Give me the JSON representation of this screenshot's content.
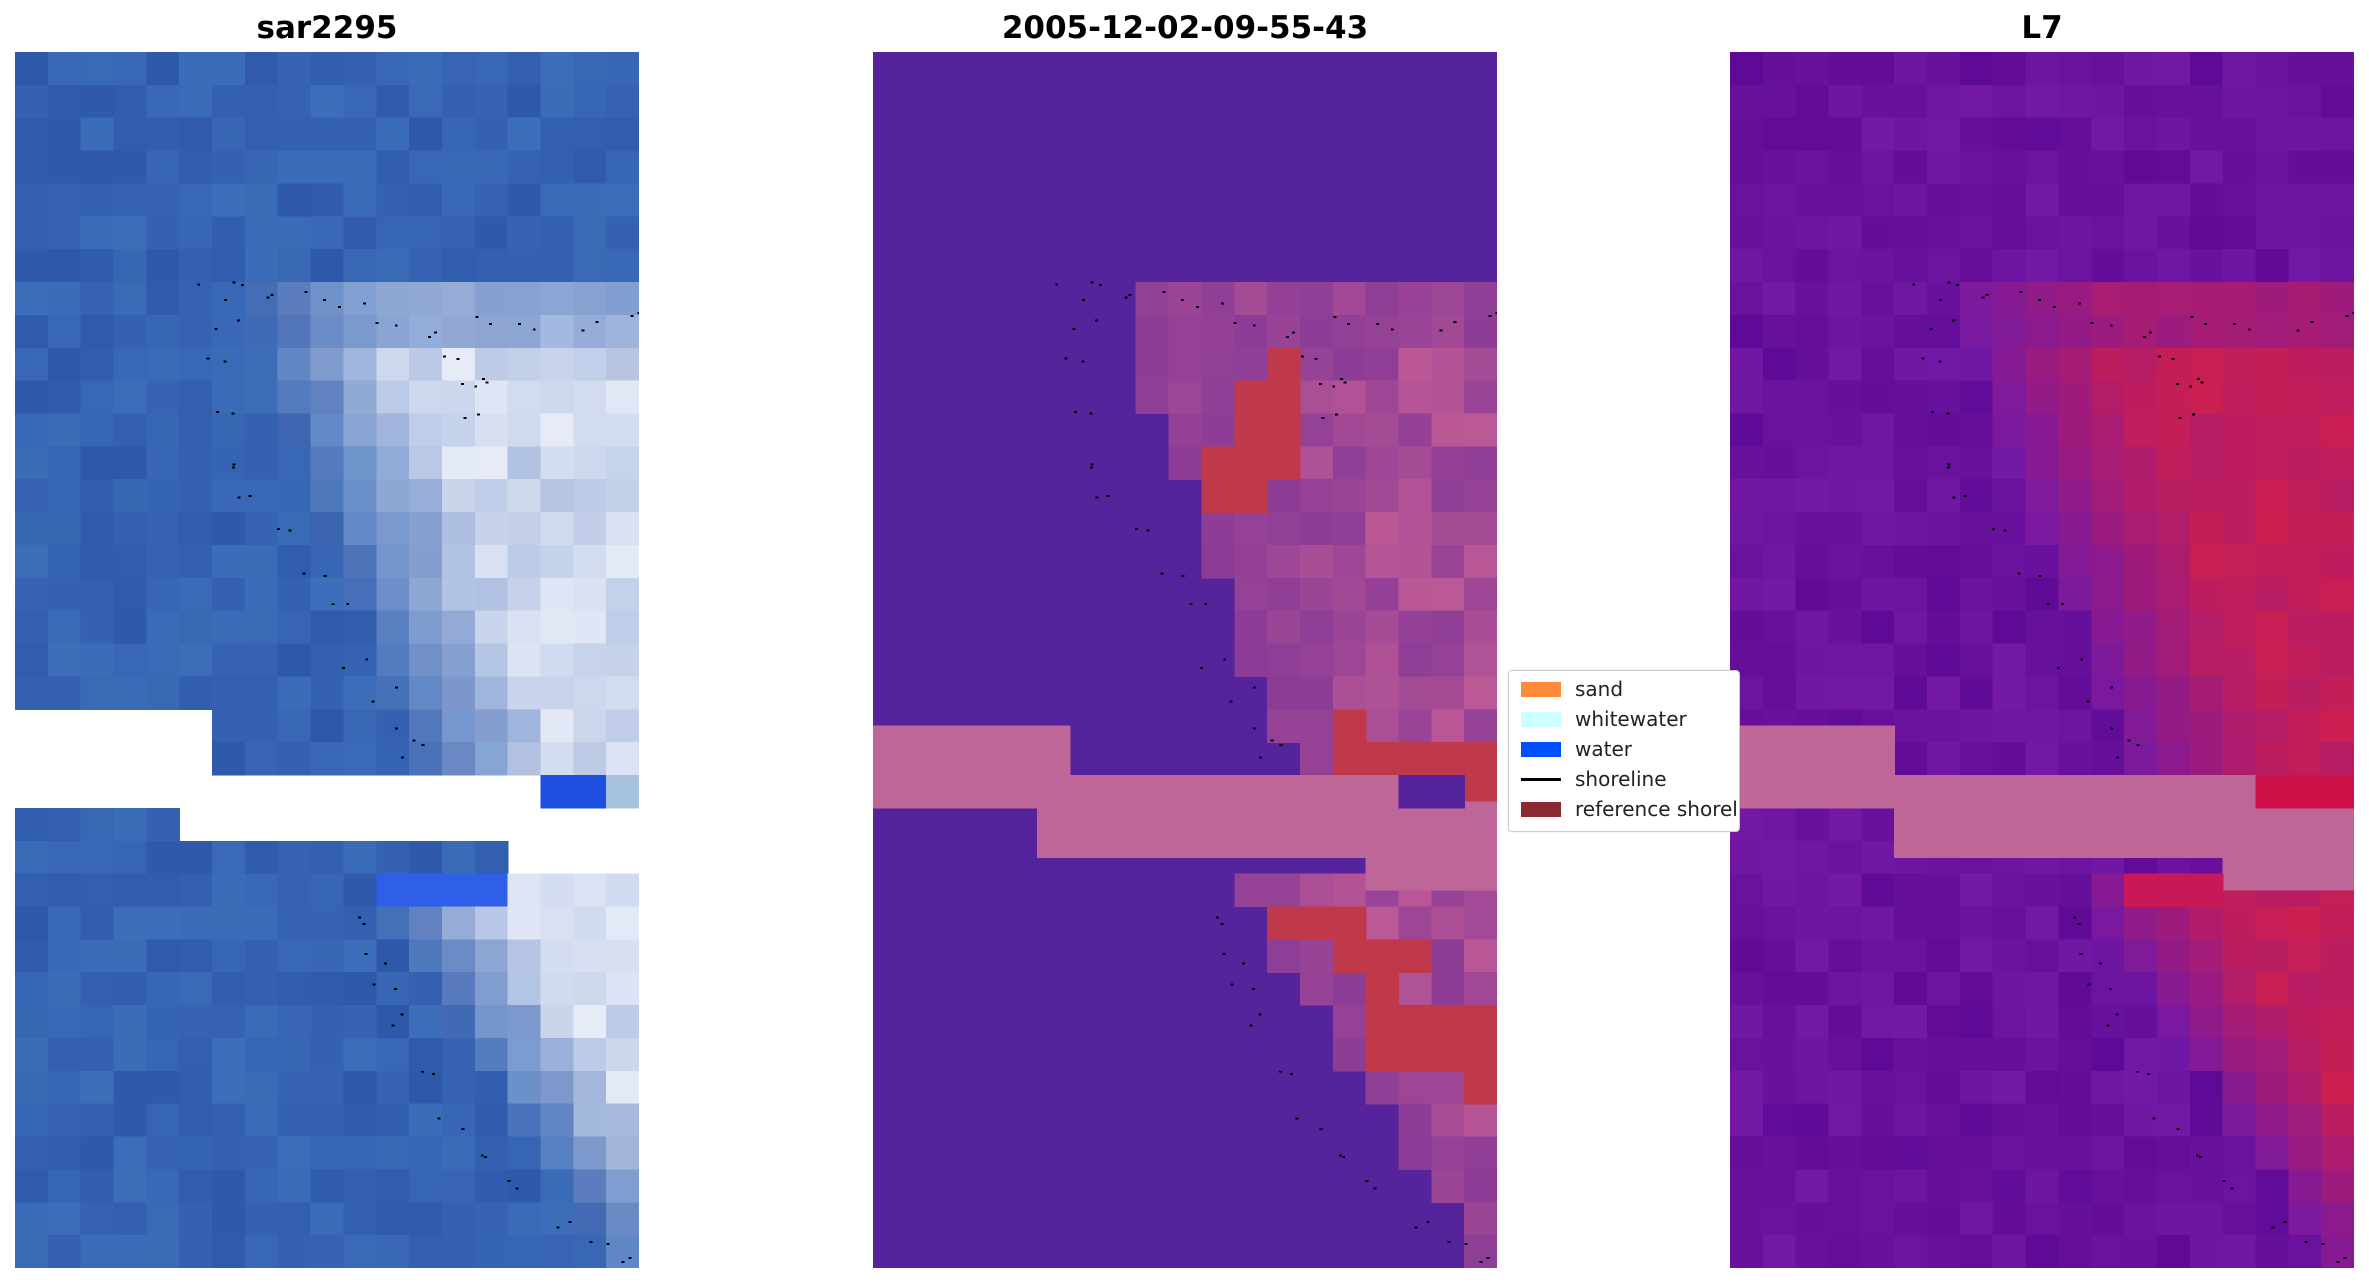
{
  "panels": [
    {
      "title": "sar2295",
      "image": "RGB satellite image tile (blue water with bright whitewater patches)"
    },
    {
      "title": "2005-12-02-09-55-43",
      "image": "classified image (sand / whitewater / water) with reference shoreline buffer"
    },
    {
      "title": "L7",
      "image": "index image with purple-to-red colormap"
    }
  ],
  "legend": {
    "items": [
      {
        "label": "sand",
        "color": "#ff8c3c",
        "kind": "patch"
      },
      {
        "label": "whitewater",
        "color": "#ccffff",
        "kind": "patch"
      },
      {
        "label": "water",
        "color": "#0050ff",
        "kind": "patch"
      },
      {
        "label": "shoreline",
        "color": "#000000",
        "kind": "line"
      },
      {
        "label": "reference shoreline buffer",
        "color": "#8b2a32",
        "kind": "patch"
      }
    ]
  },
  "colors": {
    "rgb_water": "#3565b8",
    "classified_background": "#55239b",
    "classified_buffer": "#bf6699",
    "classified_red": "#c0394a",
    "index_background": "#6a14a0",
    "index_high": "#cc1048"
  }
}
